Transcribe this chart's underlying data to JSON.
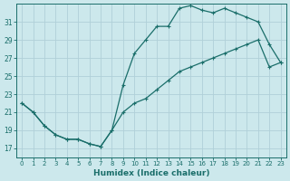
{
  "xlabel": "Humidex (Indice chaleur)",
  "background_color": "#cce8ec",
  "grid_color": "#b0d0d8",
  "line_color": "#1a6e6a",
  "xlim": [
    -0.5,
    23.5
  ],
  "ylim": [
    16.0,
    33.0
  ],
  "yticks": [
    17,
    19,
    21,
    23,
    25,
    27,
    29,
    31
  ],
  "xticks": [
    0,
    1,
    2,
    3,
    4,
    5,
    6,
    7,
    8,
    9,
    10,
    11,
    12,
    13,
    14,
    15,
    16,
    17,
    18,
    19,
    20,
    21,
    22,
    23
  ],
  "line1_x": [
    0,
    1,
    2,
    3,
    4,
    5,
    6,
    7,
    8,
    9,
    10,
    11,
    12,
    13,
    14,
    15,
    16,
    17,
    18,
    19,
    20,
    21,
    22,
    23
  ],
  "line1_y": [
    22,
    21,
    19.5,
    18.5,
    18.0,
    18.0,
    17.5,
    17.2,
    19.0,
    24.0,
    27.5,
    29.0,
    30.5,
    30.5,
    32.5,
    32.8,
    32.3,
    32.0,
    32.5,
    32.0,
    31.5,
    31.0,
    28.5,
    26.5
  ],
  "line2_x": [
    0,
    1,
    2,
    3,
    4,
    5,
    6,
    7,
    8,
    9,
    10,
    11,
    12,
    13,
    14,
    15,
    16,
    17,
    18,
    19,
    20,
    21,
    22,
    23
  ],
  "line2_y": [
    22,
    21,
    19.5,
    18.5,
    18.0,
    18.0,
    17.5,
    17.2,
    19.0,
    21.0,
    22.0,
    22.5,
    23.5,
    24.5,
    25.5,
    26.0,
    26.5,
    27.0,
    27.5,
    28.0,
    28.5,
    29.0,
    26.0,
    26.5
  ]
}
